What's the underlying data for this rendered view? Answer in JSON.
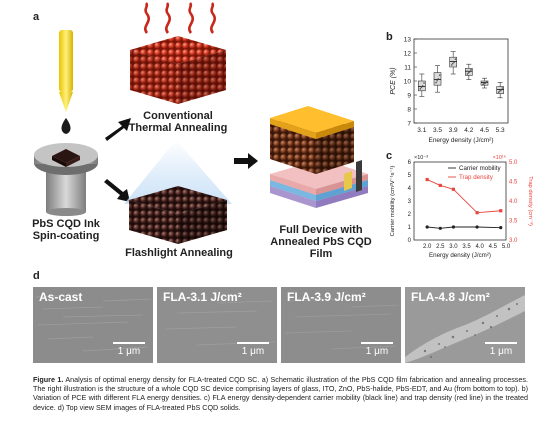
{
  "panels": {
    "a": "a",
    "b": "b",
    "c": "c",
    "d": "d"
  },
  "schematic": {
    "spin_coating_label_line1": "PbS CQD Ink",
    "spin_coating_label_line2": "Spin-coating",
    "conventional_label_line1": "Conventional",
    "conventional_label_line2": "Thermal Annealing",
    "flashlight_label": "Flashlight Annealing",
    "device_label_line1": "Full Device with",
    "device_label_line2": "Annealed PbS CQD Film"
  },
  "chart_data": [
    {
      "type": "box",
      "panel": "b",
      "xlabel": "Energy density (J/cm²)",
      "ylabel": "PCE (%)",
      "categories": [
        "3.1",
        "3.5",
        "3.9",
        "4.2",
        "4.5",
        "5.3"
      ],
      "ylim": [
        7,
        13
      ],
      "yticks": [
        "7",
        "8",
        "9",
        "10",
        "11",
        "12",
        "13"
      ],
      "boxes": [
        {
          "min": 8.9,
          "q1": 9.3,
          "median": 9.6,
          "q3": 10.0,
          "max": 10.5
        },
        {
          "min": 9.2,
          "q1": 9.7,
          "median": 10.1,
          "q3": 10.6,
          "max": 11.1
        },
        {
          "min": 10.5,
          "q1": 11.0,
          "median": 11.4,
          "q3": 11.7,
          "max": 12.1
        },
        {
          "min": 10.1,
          "q1": 10.4,
          "median": 10.7,
          "q3": 10.9,
          "max": 11.2
        },
        {
          "min": 9.5,
          "q1": 9.7,
          "median": 9.9,
          "q3": 10.0,
          "max": 10.2
        },
        {
          "min": 8.8,
          "q1": 9.1,
          "median": 9.4,
          "q3": 9.6,
          "max": 9.9
        }
      ],
      "box_color": "#d9d9d9"
    },
    {
      "type": "line",
      "panel": "c",
      "xlabel": "Energy density (J/cm²)",
      "ylabel_left": "Carrier mobility (cm²V⁻¹s⁻¹)",
      "ylabel_right": "Trap density (cm⁻³)",
      "left_multiplier": "×10⁻³",
      "right_multiplier": "×10¹⁶",
      "xlim": [
        1.5,
        5.0
      ],
      "xticks": [
        "2.0",
        "2.5",
        "3.0",
        "3.5",
        "4.0",
        "4.5",
        "5.0"
      ],
      "ylim_left": [
        0,
        6
      ],
      "yticks_left": [
        "0",
        "1",
        "2",
        "3",
        "4",
        "5",
        "6"
      ],
      "ylim_right": [
        3.0,
        5.0
      ],
      "yticks_right": [
        "3.0",
        "3.5",
        "4.0",
        "4.5",
        "5.0"
      ],
      "series": [
        {
          "name": "Carrier mobility",
          "color": "#222222",
          "axis": "left",
          "x": [
            2.0,
            2.5,
            3.0,
            3.9,
            4.8
          ],
          "y": [
            1.0,
            0.9,
            1.0,
            1.0,
            0.95
          ]
        },
        {
          "name": "Trap density",
          "color": "#e8453c",
          "axis": "right",
          "x": [
            2.0,
            2.5,
            3.0,
            3.9,
            4.8
          ],
          "y": [
            4.55,
            4.4,
            4.3,
            3.7,
            3.75
          ]
        }
      ]
    }
  ],
  "sem": {
    "panels": [
      {
        "title": "As-cast",
        "scale": "1 μm"
      },
      {
        "title": "FLA-3.1 J/cm²",
        "scale": "1 μm"
      },
      {
        "title": "FLA-3.9 J/cm²",
        "scale": "1 μm"
      },
      {
        "title": "FLA-4.8 J/cm²",
        "scale": "1 μm"
      }
    ]
  },
  "caption": {
    "label": "Figure 1.",
    "text": "Analysis of optimal energy density for FLA-treated CQD SC. a) Schematic illustration of the PbS CQD film fabrication and annealing processes. The right illustration is the structure of a whole CQD SC device comprising layers of glass, ITO, ZnO, PbS-halide, PbS-EDT, and Au (from bottom to top). b) Variation of PCE with different FLA energy densities. c) FLA energy density-dependent carrier mobility (black line) and trap density (red line) in the treated device. d) Top view SEM images of FLA-treated PbS CQD solids."
  }
}
